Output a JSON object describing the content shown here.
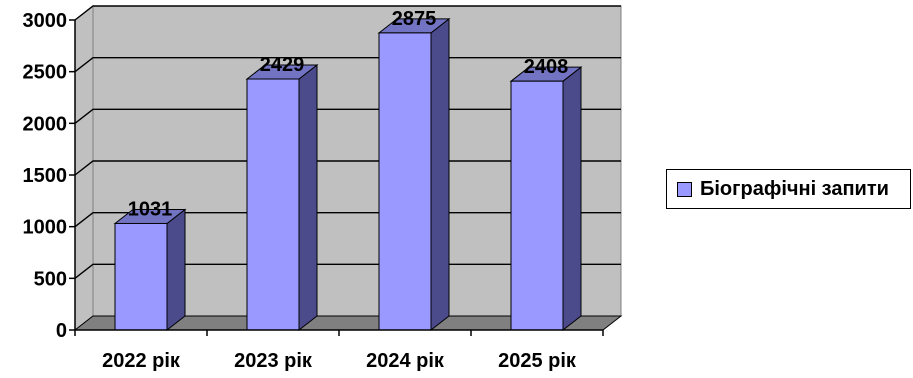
{
  "chart_data": {
    "type": "bar",
    "categories": [
      "2022 рік",
      "2023 рік",
      "2024 рік",
      "2025 рік"
    ],
    "series": [
      {
        "name": "Біографічні запити",
        "values": [
          1031,
          2429,
          2875,
          2408
        ]
      }
    ],
    "ylim": [
      0,
      3000
    ],
    "yticks": [
      0,
      500,
      1000,
      1500,
      2000,
      2500,
      3000
    ],
    "grid": true,
    "legend_position": "right",
    "colors": {
      "bar_front": "#9999ff",
      "bar_side": "#4b4b8c",
      "bar_top": "#7373c4",
      "wall": "#c0c0c0",
      "floor": "#808080",
      "gridline": "#000000"
    }
  },
  "legend": {
    "label": "Біографічні запити"
  }
}
